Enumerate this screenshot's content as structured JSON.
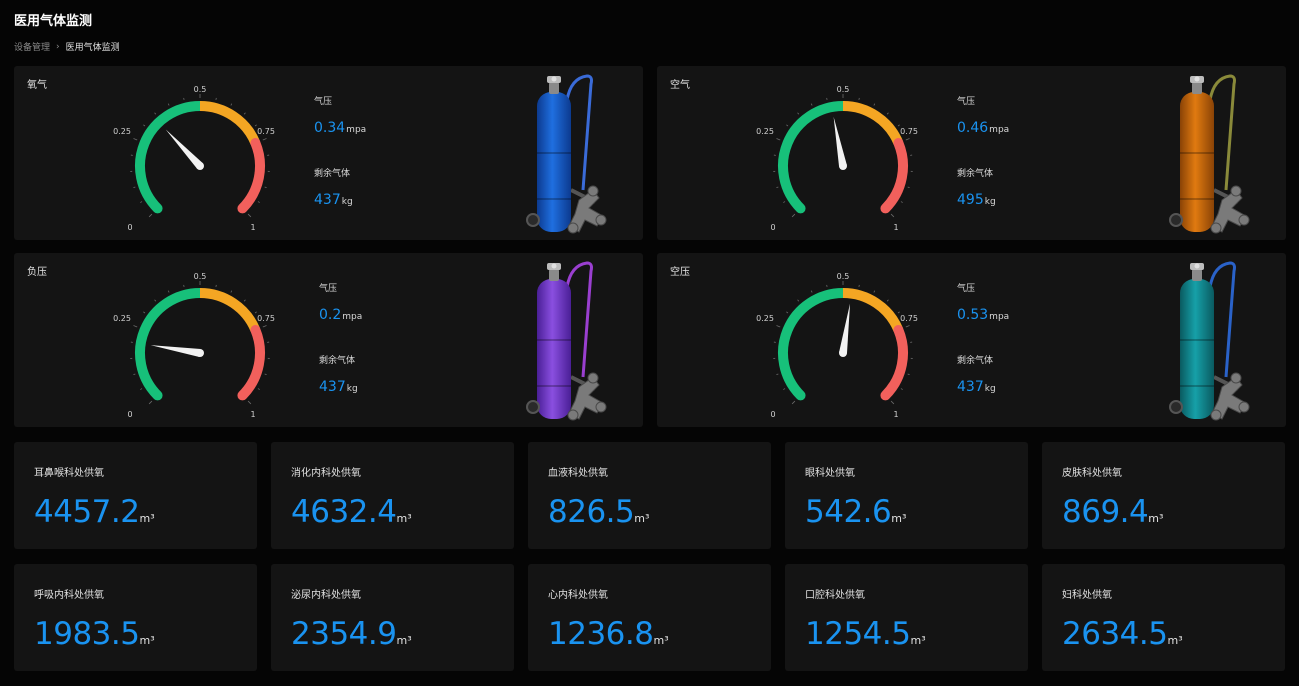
{
  "page": {
    "title": "医用气体监测",
    "breadcrumb": [
      "设备管理",
      "医用气体监测"
    ],
    "breadcrumb_separator": "›"
  },
  "gauge": {
    "min_label": "0",
    "q1_label": "0.25",
    "mid_label": "0.5",
    "q3_label": "0.75",
    "max_label": "1",
    "colors": {
      "low": "#17c07a",
      "mid": "#f4a623",
      "high": "#f2605c",
      "needle": "#f2f2f2"
    }
  },
  "gas_cards": [
    {
      "name": "氧气",
      "pressure_label": "气压",
      "pressure_value": "0.34",
      "pressure_unit": "mpa",
      "pressure_reading": 0.34,
      "remain_label": "剩余气体",
      "remain_value": "437",
      "remain_unit": "kg",
      "cylinder_color": "#1f6fe0",
      "cylinder_dark": "#0c3a8f",
      "handle_color": "#3a6bd8"
    },
    {
      "name": "空气",
      "pressure_label": "气压",
      "pressure_value": "0.46",
      "pressure_unit": "mpa",
      "pressure_reading": 0.46,
      "remain_label": "剩余气体",
      "remain_value": "495",
      "remain_unit": "kg",
      "cylinder_color": "#e07a10",
      "cylinder_dark": "#8a4306",
      "handle_color": "#8a8a3a"
    },
    {
      "name": "负压",
      "pressure_label": "气压",
      "pressure_value": "0.2",
      "pressure_unit": "mpa",
      "pressure_reading": 0.2,
      "remain_label": "剩余气体",
      "remain_value": "437",
      "remain_unit": "kg",
      "cylinder_color": "#8a4fe0",
      "cylinder_dark": "#4a1f96",
      "handle_color": "#9a3fd0"
    },
    {
      "name": "空压",
      "pressure_label": "气压",
      "pressure_value": "0.53",
      "pressure_unit": "mpa",
      "pressure_reading": 0.53,
      "remain_label": "剩余气体",
      "remain_value": "437",
      "remain_unit": "kg",
      "cylinder_color": "#16a0a8",
      "cylinder_dark": "#0a5a60",
      "handle_color": "#2a62c8"
    }
  ],
  "depts": [
    {
      "label": "耳鼻喉科处供氧",
      "value": "4457.2",
      "unit": "m³"
    },
    {
      "label": "消化内科处供氧",
      "value": "4632.4",
      "unit": "m³"
    },
    {
      "label": "血液科处供氧",
      "value": "826.5",
      "unit": "m³"
    },
    {
      "label": "眼科处供氧",
      "value": "542.6",
      "unit": "m³"
    },
    {
      "label": "皮肤科处供氧",
      "value": "869.4",
      "unit": "m³"
    },
    {
      "label": "呼吸内科处供氧",
      "value": "1983.5",
      "unit": "m³"
    },
    {
      "label": "泌尿内科处供氧",
      "value": "2354.9",
      "unit": "m³"
    },
    {
      "label": "心内科处供氧",
      "value": "1236.8",
      "unit": "m³"
    },
    {
      "label": "口腔科处供氧",
      "value": "1254.5",
      "unit": "m³"
    },
    {
      "label": "妇科处供氧",
      "value": "2634.5",
      "unit": "m³"
    }
  ]
}
